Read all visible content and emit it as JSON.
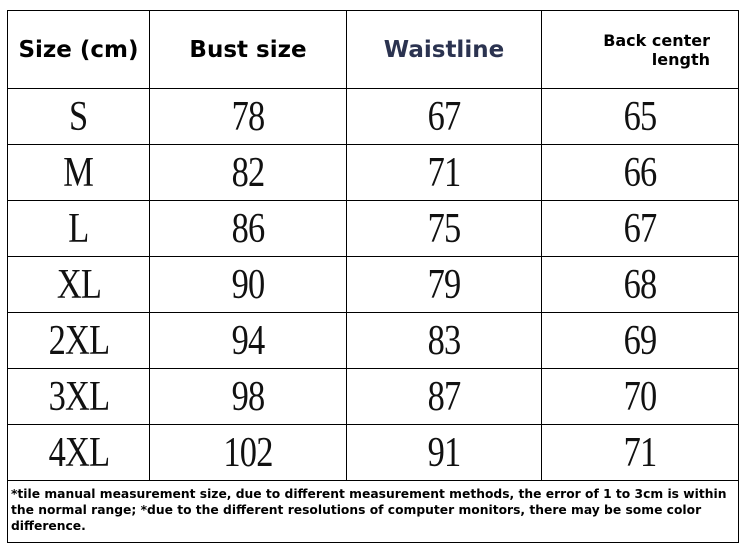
{
  "table": {
    "header": [
      "Size (cm)",
      "Bust size",
      "Waistline",
      "Back center length"
    ],
    "rows": [
      [
        "S",
        78,
        67,
        65
      ],
      [
        "M",
        82,
        71,
        66
      ],
      [
        "L",
        86,
        75,
        67
      ],
      [
        "XL",
        90,
        79,
        68
      ],
      [
        "2XL",
        94,
        83,
        69
      ],
      [
        "3XL",
        98,
        87,
        70
      ],
      [
        "4XL",
        102,
        91,
        71
      ]
    ],
    "note": "*tile manual measurement size, due to different measurement methods, the error of 1 to 3cm is within the normal range; *due to the different resolutions of computer monitors, there may be some color difference."
  }
}
